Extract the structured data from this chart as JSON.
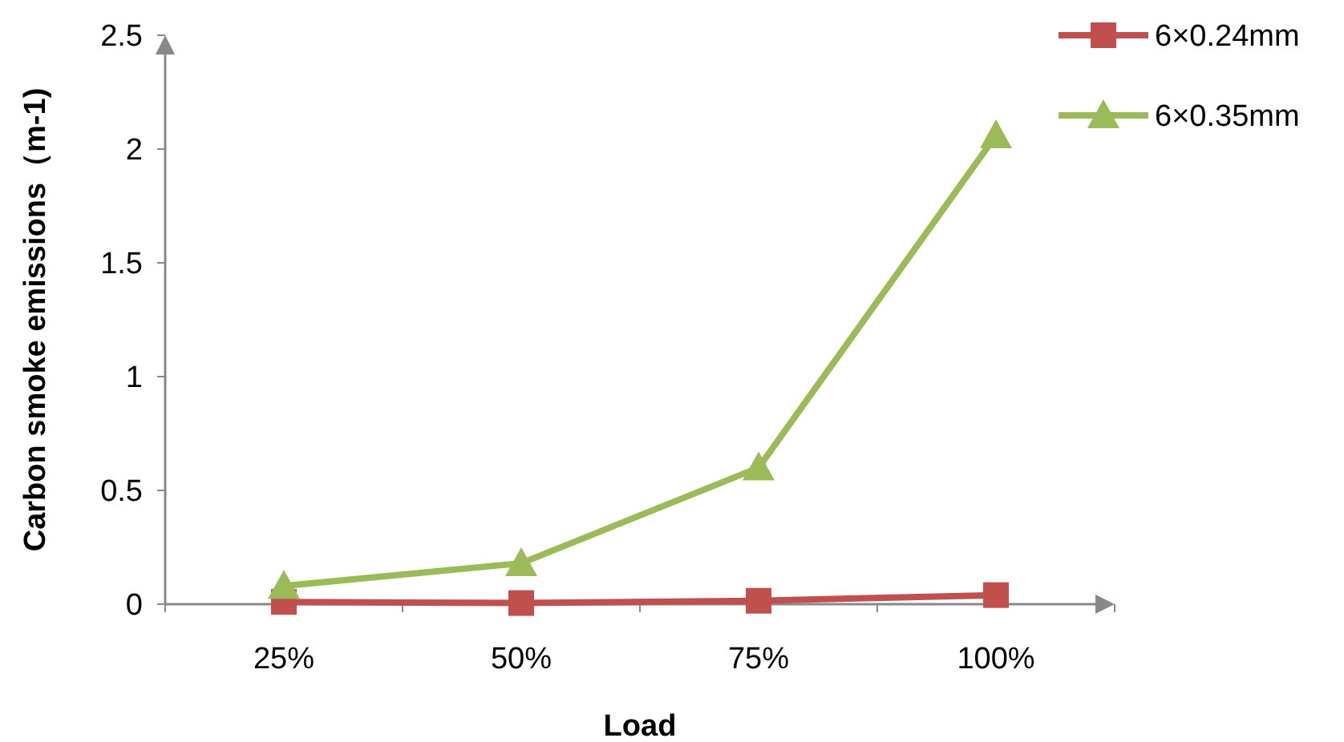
{
  "chart_data": {
    "type": "line",
    "xlabel": "Load",
    "ylabel": "Carbon smoke emissions（m-1)",
    "categories": [
      "25%",
      "50%",
      "75%",
      "100%"
    ],
    "series": [
      {
        "name": "6×0.24mm",
        "color": "#c0504d",
        "marker": "square",
        "values": [
          0.01,
          0.005,
          0.015,
          0.04
        ]
      },
      {
        "name": "6×0.35mm",
        "color": "#9bbb59",
        "marker": "triangle",
        "values": [
          0.08,
          0.18,
          0.6,
          2.06
        ]
      }
    ],
    "ylim": [
      0,
      2.5
    ],
    "yticks": [
      0,
      0.5,
      1,
      1.5,
      2,
      2.5
    ],
    "grid": false,
    "legend": "top right",
    "line_style": "solid"
  }
}
